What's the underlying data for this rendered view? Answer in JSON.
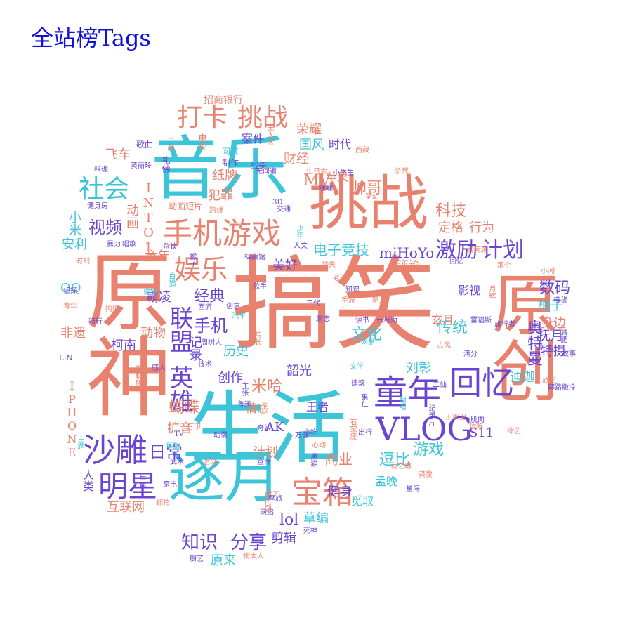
{
  "title": "全站榜Tags",
  "colors": {
    "title": "#1410d8",
    "coral": "#e8826e",
    "cyan": "#3cc4d8",
    "purple": "#6a45d2"
  },
  "words": [
    {
      "t": "搞笑",
      "c": "c1"
    },
    {
      "t": "原神",
      "c": "c1"
    },
    {
      "t": "生活",
      "c": "c2"
    },
    {
      "t": "原创",
      "c": "c1"
    },
    {
      "t": "音乐",
      "c": "c2"
    },
    {
      "t": "挑战",
      "c": "c1"
    },
    {
      "t": "逐月",
      "c": "c2"
    },
    {
      "t": "手机游戏",
      "c": "c1"
    },
    {
      "t": "童年",
      "c": "c3"
    },
    {
      "t": "VLOG",
      "c": "c3"
    },
    {
      "t": "回忆",
      "c": "c3"
    },
    {
      "t": "沙雕",
      "c": "c3"
    },
    {
      "t": "明星",
      "c": "c3"
    },
    {
      "t": "宝箱",
      "c": "c1"
    },
    {
      "t": "打卡",
      "c": "c1"
    },
    {
      "t": "挑战",
      "c": "c1"
    },
    {
      "t": "社会",
      "c": "c2"
    },
    {
      "t": "娱乐",
      "c": "c1"
    },
    {
      "t": "英雄",
      "c": "c3"
    },
    {
      "t": "联盟",
      "c": "c3"
    },
    {
      "t": "激励",
      "c": "c3"
    },
    {
      "t": "计划",
      "c": "c3"
    },
    {
      "t": "知识",
      "c": "c3"
    },
    {
      "t": "分享",
      "c": "c3"
    },
    {
      "t": "视频",
      "c": "c3"
    },
    {
      "t": "电子竞技",
      "c": "c2"
    },
    {
      "t": "手机",
      "c": "c3"
    },
    {
      "t": "奥特曼",
      "c": "c3"
    },
    {
      "t": "数码",
      "c": "c3"
    },
    {
      "t": "MV",
      "c": "c1"
    },
    {
      "t": "帅哥",
      "c": "c1"
    },
    {
      "t": "科技",
      "c": "c1"
    },
    {
      "t": "经典",
      "c": "c3"
    },
    {
      "t": "文化",
      "c": "c2"
    },
    {
      "t": "传统",
      "c": "c2"
    },
    {
      "t": "米哈",
      "c": "c1"
    },
    {
      "t": "逗比",
      "c": "c2"
    },
    {
      "t": "游戏",
      "c": "c2"
    },
    {
      "t": "蝴蝶",
      "c": "c1"
    },
    {
      "t": "日常",
      "c": "c3"
    },
    {
      "t": "扩音",
      "c": "c1"
    },
    {
      "t": "商业",
      "c": "c1"
    },
    {
      "t": "lol",
      "c": "c3"
    },
    {
      "t": "草编",
      "c": "c2"
    },
    {
      "t": "健身",
      "c": "c3"
    },
    {
      "t": "剪辑",
      "c": "c3"
    },
    {
      "t": "原来",
      "c": "c2"
    },
    {
      "t": "小米",
      "c": "c2"
    },
    {
      "t": "安利",
      "c": "c2"
    },
    {
      "t": "动画",
      "c": "c1"
    },
    {
      "t": "INTO1",
      "c": "c1"
    },
    {
      "t": "纸牌",
      "c": "c1"
    },
    {
      "t": "犯罪",
      "c": "c1"
    },
    {
      "t": "财经",
      "c": "c1"
    },
    {
      "t": "国风",
      "c": "c2"
    },
    {
      "t": "时代",
      "c": "c3"
    },
    {
      "t": "荣耀",
      "c": "c1"
    },
    {
      "t": "案件",
      "c": "c3"
    },
    {
      "t": "飞车",
      "c": "c1"
    },
    {
      "t": "苹果",
      "c": "c1"
    },
    {
      "t": "定格",
      "c": "c1"
    },
    {
      "t": "行为",
      "c": "c1"
    },
    {
      "t": "miHoYo",
      "c": "c3"
    },
    {
      "t": "童年",
      "c": "c1"
    },
    {
      "t": "美好",
      "c": "c3"
    },
    {
      "t": "QQ",
      "c": "c2"
    },
    {
      "t": "霸凌",
      "c": "c3"
    },
    {
      "t": "动物",
      "c": "c1"
    },
    {
      "t": "柯南",
      "c": "c3"
    },
    {
      "t": "非遗",
      "c": "c1"
    },
    {
      "t": "历史",
      "c": "c2"
    },
    {
      "t": "记录",
      "c": "c3"
    },
    {
      "t": "创作",
      "c": "c3"
    },
    {
      "t": "韶光",
      "c": "c3"
    },
    {
      "t": "刘彰",
      "c": "c2"
    },
    {
      "t": "迪迦",
      "c": "c2"
    },
    {
      "t": "柚子",
      "c": "c2"
    },
    {
      "t": "身边",
      "c": "c1"
    },
    {
      "t": "抚月",
      "c": "c3"
    },
    {
      "t": "特摄",
      "c": "c3"
    },
    {
      "t": "IPHONE",
      "c": "c1"
    },
    {
      "t": "人类",
      "c": "c3"
    },
    {
      "t": "互联网",
      "c": "c1"
    },
    {
      "t": "情感",
      "c": "c1"
    },
    {
      "t": "AK",
      "c": "c3"
    },
    {
      "t": "计划",
      "c": "c1"
    },
    {
      "t": "孟晚",
      "c": "c2"
    },
    {
      "t": "觅取",
      "c": "c2"
    },
    {
      "t": "S11",
      "c": "c3"
    },
    {
      "t": "影视",
      "c": "c3"
    },
    {
      "t": "评论",
      "c": "c1"
    },
    {
      "t": "玄月",
      "c": "c1"
    },
    {
      "t": "王者",
      "c": "c3"
    },
    {
      "t": "招商银行",
      "c": "c1"
    },
    {
      "t": "歌曲",
      "c": "c3"
    },
    {
      "t": "礼佛",
      "c": "c3"
    },
    {
      "t": "电视",
      "c": "c1"
    },
    {
      "t": "网红",
      "c": "c2"
    },
    {
      "t": "制作",
      "c": "c3"
    },
    {
      "t": "战争",
      "c": "c3"
    },
    {
      "t": "生日会",
      "c": "c1"
    },
    {
      "t": "小学生",
      "c": "c3"
    },
    {
      "t": "西藏",
      "c": "c1"
    },
    {
      "t": "杀死",
      "c": "c1"
    },
    {
      "t": "梦幻",
      "c": "c1"
    },
    {
      "t": "3D",
      "c": "c3"
    },
    {
      "t": "交通",
      "c": "c3"
    },
    {
      "t": "档案馆",
      "c": "c3"
    },
    {
      "t": "杂谈",
      "c": "c3"
    },
    {
      "t": "人文",
      "c": "c3"
    },
    {
      "t": "少年",
      "c": "c2"
    },
    {
      "t": "功夫",
      "c": "c1"
    },
    {
      "t": "知识",
      "c": "c3"
    },
    {
      "t": "蛋黄派",
      "c": "c1"
    },
    {
      "t": "那个",
      "c": "c1"
    },
    {
      "t": "小潮",
      "c": "c1"
    },
    {
      "t": "旅店",
      "c": "c1"
    },
    {
      "t": "故事",
      "c": "c3"
    },
    {
      "t": "减肥",
      "c": "c3"
    },
    {
      "t": "满分",
      "c": "c3"
    },
    {
      "t": "古风",
      "c": "c1"
    },
    {
      "t": "带货",
      "c": "c3"
    },
    {
      "t": "旅行者",
      "c": "c3"
    },
    {
      "t": "雷福斯",
      "c": "c3"
    },
    {
      "t": "月辉",
      "c": "c1"
    },
    {
      "t": "网易",
      "c": "c2"
    },
    {
      "t": "云与海",
      "c": "c3"
    },
    {
      "t": "读书",
      "c": "c3"
    },
    {
      "t": "新人",
      "c": "c1"
    },
    {
      "t": "手游",
      "c": "c1"
    },
    {
      "t": "三代",
      "c": "c3"
    },
    {
      "t": "老邪",
      "c": "c1"
    },
    {
      "t": "歌手",
      "c": "c3"
    },
    {
      "t": "创意",
      "c": "c3"
    },
    {
      "t": "汽车",
      "c": "c2"
    },
    {
      "t": "西游",
      "c": "c3"
    },
    {
      "t": "周树人",
      "c": "c3"
    },
    {
      "t": "院长",
      "c": "c1"
    },
    {
      "t": "佛媛",
      "c": "c2"
    },
    {
      "t": "侦探",
      "c": "c3"
    },
    {
      "t": "青年",
      "c": "c1"
    },
    {
      "t": "狗狗",
      "c": "c1"
    },
    {
      "t": "骑行",
      "c": "c3"
    },
    {
      "t": "LIN",
      "c": "c3"
    },
    {
      "t": "感人",
      "c": "c3"
    },
    {
      "t": "技术",
      "c": "c3"
    },
    {
      "t": "鲁迅",
      "c": "c3"
    },
    {
      "t": "文学",
      "c": "c2"
    },
    {
      "t": "建筑",
      "c": "c3"
    },
    {
      "t": "果仁",
      "c": "c3"
    },
    {
      "t": "翻唱",
      "c": "c2"
    },
    {
      "t": "王家卫",
      "c": "c1"
    },
    {
      "t": "肌肉",
      "c": "c3"
    },
    {
      "t": "攻略",
      "c": "c1"
    },
    {
      "t": "综艺",
      "c": "c1"
    },
    {
      "t": "出行",
      "c": "c3"
    },
    {
      "t": "小吃",
      "c": "c3"
    },
    {
      "t": "心动",
      "c": "c1"
    },
    {
      "t": "奇妙",
      "c": "c3"
    },
    {
      "t": "万能",
      "c": "c3"
    },
    {
      "t": "动漫",
      "c": "c3"
    },
    {
      "t": "打印",
      "c": "c1"
    },
    {
      "t": "星酷",
      "c": "c2"
    },
    {
      "t": "TV",
      "c": "c3"
    },
    {
      "t": "武术",
      "c": "c3"
    },
    {
      "t": "普法",
      "c": "c1"
    },
    {
      "t": "宣传",
      "c": "c3"
    },
    {
      "t": "家电",
      "c": "c3"
    },
    {
      "t": "牛排",
      "c": "c3"
    },
    {
      "t": "翻拍",
      "c": "c1"
    },
    {
      "t": "荷之琳",
      "c": "c1"
    },
    {
      "t": "龚俊",
      "c": "c1"
    },
    {
      "t": "星海",
      "c": "c3"
    },
    {
      "t": "手工",
      "c": "c1"
    },
    {
      "t": "摩旅",
      "c": "c3"
    },
    {
      "t": "网络",
      "c": "c3"
    },
    {
      "t": "死神",
      "c": "c3"
    },
    {
      "t": "犹太人",
      "c": "c1"
    },
    {
      "t": "厨艺",
      "c": "c3"
    },
    {
      "t": "料理",
      "c": "c3"
    },
    {
      "t": "黄丽玲",
      "c": "c3"
    },
    {
      "t": "健身房",
      "c": "c3"
    },
    {
      "t": "暴力",
      "c": "c3"
    },
    {
      "t": "唱歌",
      "c": "c3"
    },
    {
      "t": "时刻",
      "c": "c1"
    },
    {
      "t": "动画短片",
      "c": "c1"
    },
    {
      "t": "路线",
      "c": "c1"
    },
    {
      "t": "哩哩",
      "c": "c3"
    },
    {
      "t": "无间道",
      "c": "c3"
    },
    {
      "t": "二战",
      "c": "c1"
    },
    {
      "t": "无人区",
      "c": "c1"
    },
    {
      "t": "主题",
      "c": "c2"
    },
    {
      "t": "巴勒斯坦",
      "c": "c1"
    },
    {
      "t": "以色列",
      "c": "c1"
    },
    {
      "t": "黑猫",
      "c": "c3"
    },
    {
      "t": "石家庄",
      "c": "c1"
    },
    {
      "t": "纪录片",
      "c": "c3"
    },
    {
      "t": "回忆",
      "c": "c3"
    },
    {
      "t": "二仙",
      "c": "c3"
    },
    {
      "t": "白猫",
      "c": "c2"
    },
    {
      "t": "猴子",
      "c": "c3"
    },
    {
      "t": "主张",
      "c": "c3"
    },
    {
      "t": "耶路撒冷",
      "c": "c3"
    },
    {
      "t": "励志",
      "c": "c3"
    }
  ]
}
